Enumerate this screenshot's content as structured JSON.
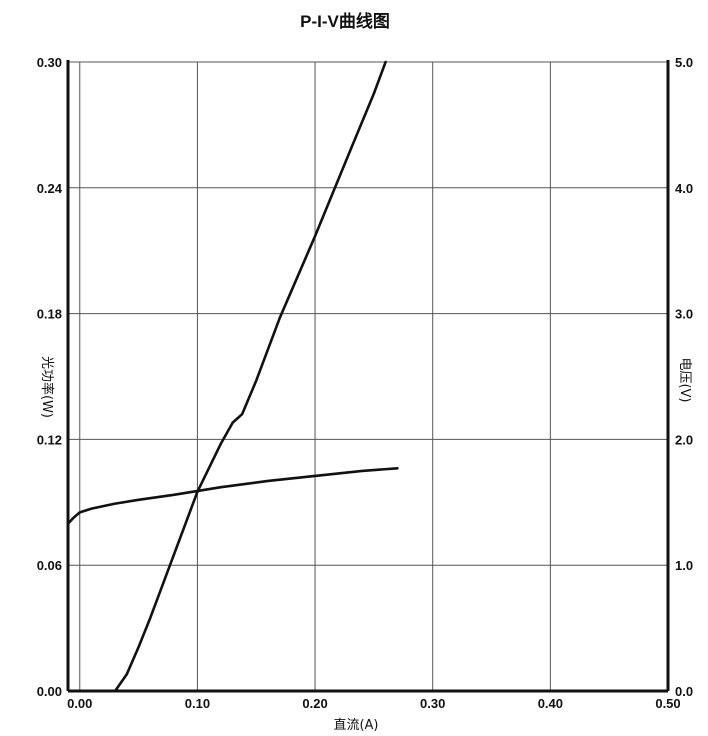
{
  "chart_data": {
    "type": "line",
    "title": "P-I-V曲线图",
    "xlabel": "直流(A)",
    "ylabel_left": "光功率(W)",
    "ylabel_right": "电压(V)",
    "xlim": [
      -0.01,
      0.5
    ],
    "ylim_left": [
      0,
      0.3
    ],
    "ylim_right": [
      0,
      5.0
    ],
    "x_ticks": [
      "0.00",
      "0.10",
      "0.20",
      "0.30",
      "0.40",
      "0.50"
    ],
    "x_tick_values": [
      0.0,
      0.1,
      0.2,
      0.3,
      0.4,
      0.5
    ],
    "y_left_ticks": [
      "0.00",
      "0.06",
      "0.12",
      "0.18",
      "0.24",
      "0.30"
    ],
    "y_left_tick_values": [
      0.0,
      0.06,
      0.12,
      0.18,
      0.24,
      0.3
    ],
    "y_right_ticks": [
      "0.0",
      "1.0",
      "2.0",
      "3.0",
      "4.0",
      "5.0"
    ],
    "y_right_tick_values": [
      0.0,
      1.0,
      2.0,
      3.0,
      4.0,
      5.0
    ],
    "grid": true,
    "line_color": "#111111",
    "grid_color": "#555555",
    "series": [
      {
        "axis": "left",
        "x": [
          0.03,
          0.04,
          0.05,
          0.06,
          0.08,
          0.1,
          0.12,
          0.13,
          0.138,
          0.15,
          0.17,
          0.2,
          0.23,
          0.25,
          0.26
        ],
        "y": [
          0.0,
          0.008,
          0.021,
          0.035,
          0.065,
          0.095,
          0.118,
          0.128,
          0.132,
          0.148,
          0.178,
          0.217,
          0.258,
          0.285,
          0.3
        ]
      },
      {
        "axis": "right",
        "x": [
          -0.01,
          -0.005,
          0.0,
          0.01,
          0.03,
          0.05,
          0.08,
          0.12,
          0.16,
          0.2,
          0.24,
          0.27
        ],
        "y": [
          1.33,
          1.38,
          1.42,
          1.45,
          1.49,
          1.52,
          1.56,
          1.62,
          1.67,
          1.71,
          1.75,
          1.77
        ]
      }
    ]
  }
}
